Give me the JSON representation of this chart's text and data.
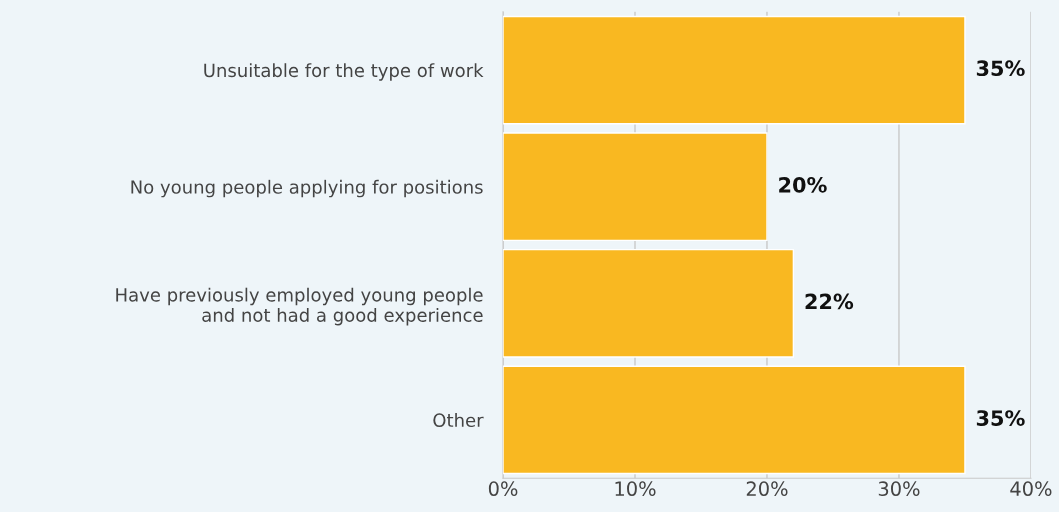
{
  "chart_data": {
    "type": "bar",
    "orientation": "horizontal",
    "categories": [
      "Unsuitable for the type of work",
      "No young people applying for positions",
      "Have previously employed young people\nand not had a good experience",
      "Other"
    ],
    "values": [
      35,
      20,
      22,
      35
    ],
    "value_labels": [
      "35%",
      "20%",
      "22%",
      "35%"
    ],
    "color": "#f9b821",
    "xlim": [
      0,
      40
    ],
    "xticks": [
      {
        "value": 0,
        "label": "0%"
      },
      {
        "value": 10,
        "label": "10%"
      },
      {
        "value": 20,
        "label": "20%"
      },
      {
        "value": 30,
        "label": "30%"
      },
      {
        "value": 40,
        "label": "40%"
      }
    ],
    "grid": "x",
    "legend": false
  }
}
